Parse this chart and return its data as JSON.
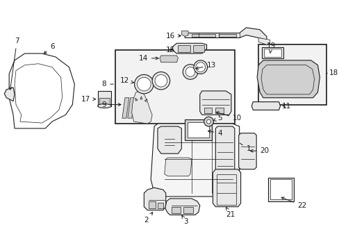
{
  "background_color": "#ffffff",
  "line_color": "#1a1a1a",
  "text_color": "#1a1a1a",
  "fill_light": "#e8e8e8",
  "fill_mid": "#d0d0d0",
  "fill_dark": "#b8b8b8",
  "fill_box": "#ebebeb",
  "figsize": [
    4.89,
    3.6
  ],
  "dpi": 100,
  "xlim": [
    0,
    489
  ],
  "ylim": [
    0,
    360
  ]
}
